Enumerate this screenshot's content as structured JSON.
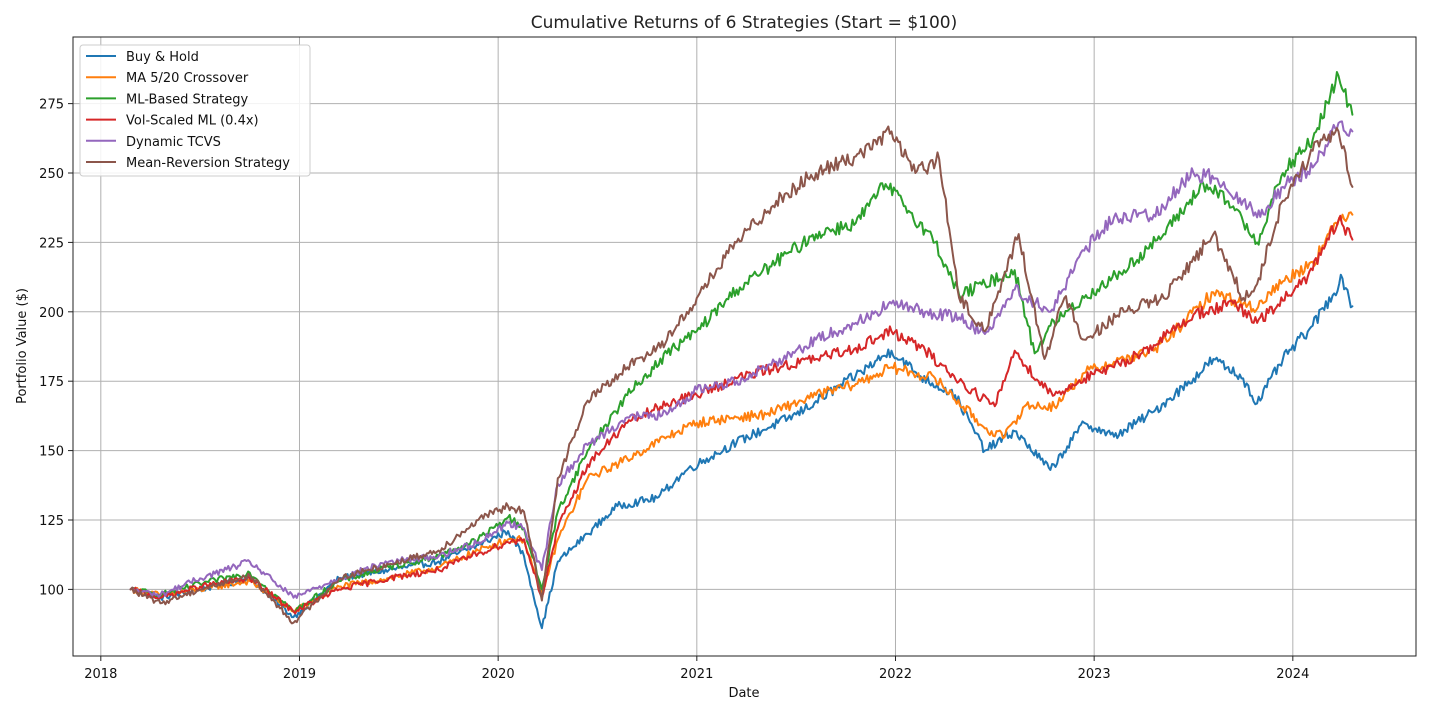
{
  "chart_data": {
    "type": "line",
    "title": "Cumulative Returns of 6 Strategies (Start = $100)",
    "xlabel": "Date",
    "ylabel": "Portfolio Value ($)",
    "xlim": [
      2017.86,
      2024.62
    ],
    "ylim": [
      76,
      299
    ],
    "x_ticks": [
      2018,
      2019,
      2020,
      2021,
      2022,
      2023,
      2024
    ],
    "x_tick_labels": [
      "2018",
      "2019",
      "2020",
      "2021",
      "2022",
      "2023",
      "2024"
    ],
    "y_ticks": [
      100,
      125,
      150,
      175,
      200,
      225,
      250,
      275
    ],
    "y_tick_labels": [
      "100",
      "125",
      "150",
      "175",
      "200",
      "225",
      "250",
      "275"
    ],
    "grid": true,
    "legend_position": "top-left",
    "series": [
      {
        "name": "Buy & Hold",
        "color": "#1f77b4",
        "x": [
          2018.15,
          2018.3,
          2018.5,
          2018.75,
          2018.97,
          2019.2,
          2019.45,
          2019.7,
          2019.9,
          2020.05,
          2020.13,
          2020.22,
          2020.3,
          2020.45,
          2020.6,
          2020.8,
          2020.95,
          2021.2,
          2021.5,
          2021.8,
          2021.98,
          2022.12,
          2022.3,
          2022.45,
          2022.6,
          2022.78,
          2022.95,
          2023.1,
          2023.3,
          2023.5,
          2023.6,
          2023.75,
          2023.82,
          2023.95,
          2024.1,
          2024.25,
          2024.3
        ],
        "y": [
          100,
          97,
          100,
          104,
          90,
          104,
          107,
          110,
          116,
          121,
          112,
          86,
          110,
          120,
          130,
          133,
          143,
          153,
          163,
          177,
          186,
          177,
          170,
          150,
          157,
          143,
          160,
          155,
          164,
          176,
          183,
          176,
          167,
          183,
          195,
          212,
          202
        ]
      },
      {
        "name": "MA 5/20 Crossover",
        "color": "#ff7f0e",
        "x": [
          2018.15,
          2018.3,
          2018.5,
          2018.75,
          2018.97,
          2019.2,
          2019.45,
          2019.7,
          2019.9,
          2020.05,
          2020.13,
          2020.22,
          2020.3,
          2020.45,
          2020.65,
          2020.85,
          2021.0,
          2021.2,
          2021.35,
          2021.6,
          2021.8,
          2021.98,
          2022.2,
          2022.45,
          2022.55,
          2022.65,
          2022.8,
          2022.95,
          2023.1,
          2023.3,
          2023.45,
          2023.6,
          2023.75,
          2023.8,
          2023.95,
          2024.1,
          2024.25,
          2024.3
        ],
        "y": [
          100,
          98,
          100,
          103,
          92,
          101,
          104,
          108,
          114,
          118,
          118,
          98,
          118,
          140,
          147,
          155,
          160,
          162,
          163,
          170,
          174,
          180,
          176,
          158,
          155,
          166,
          166,
          178,
          182,
          186,
          196,
          207,
          203,
          201,
          211,
          218,
          235,
          235
        ]
      },
      {
        "name": "ML-Based Strategy",
        "color": "#2ca02c",
        "x": [
          2018.15,
          2018.3,
          2018.5,
          2018.75,
          2018.97,
          2019.2,
          2019.45,
          2019.7,
          2019.9,
          2020.05,
          2020.13,
          2020.22,
          2020.3,
          2020.45,
          2020.65,
          2020.85,
          2021.0,
          2021.2,
          2021.4,
          2021.6,
          2021.8,
          2021.95,
          2022.05,
          2022.2,
          2022.32,
          2022.45,
          2022.6,
          2022.7,
          2022.78,
          2022.95,
          2023.15,
          2023.35,
          2023.55,
          2023.7,
          2023.82,
          2023.95,
          2024.1,
          2024.23,
          2024.3
        ],
        "y": [
          100,
          98,
          102,
          106,
          92,
          103,
          108,
          112,
          118,
          126,
          122,
          100,
          128,
          150,
          170,
          185,
          193,
          208,
          218,
          228,
          232,
          246,
          238,
          225,
          206,
          210,
          215,
          185,
          195,
          205,
          215,
          228,
          246,
          238,
          225,
          250,
          262,
          285,
          271
        ]
      },
      {
        "name": "Vol-Scaled ML (0.4x)",
        "color": "#d62728",
        "x": [
          2018.15,
          2018.3,
          2018.5,
          2018.75,
          2018.97,
          2019.2,
          2019.45,
          2019.7,
          2019.9,
          2020.05,
          2020.13,
          2020.22,
          2020.3,
          2020.45,
          2020.65,
          2020.85,
          2021.0,
          2021.2,
          2021.4,
          2021.6,
          2021.8,
          2021.98,
          2022.15,
          2022.32,
          2022.5,
          2022.6,
          2022.72,
          2022.8,
          2022.95,
          2023.1,
          2023.3,
          2023.5,
          2023.7,
          2023.82,
          2023.95,
          2024.1,
          2024.23,
          2024.3
        ],
        "y": [
          100,
          97,
          101,
          104,
          92,
          100,
          104,
          107,
          113,
          117,
          118,
          97,
          122,
          145,
          160,
          167,
          170,
          176,
          180,
          183,
          187,
          193,
          186,
          175,
          166,
          186,
          175,
          170,
          176,
          180,
          188,
          199,
          203,
          196,
          204,
          215,
          233,
          226
        ]
      },
      {
        "name": "Dynamic TCVS",
        "color": "#9467bd",
        "x": [
          2018.15,
          2018.3,
          2018.5,
          2018.75,
          2018.97,
          2019.2,
          2019.45,
          2019.7,
          2019.9,
          2020.05,
          2020.13,
          2020.22,
          2020.3,
          2020.45,
          2020.65,
          2020.85,
          2021.0,
          2021.2,
          2021.4,
          2021.6,
          2021.8,
          2021.98,
          2022.15,
          2022.32,
          2022.45,
          2022.6,
          2022.78,
          2022.95,
          2023.1,
          2023.3,
          2023.5,
          2023.62,
          2023.75,
          2023.82,
          2023.95,
          2024.1,
          2024.23,
          2024.3
        ],
        "y": [
          100,
          98,
          104,
          110,
          97,
          104,
          110,
          112,
          117,
          124,
          122,
          107,
          138,
          152,
          162,
          163,
          172,
          175,
          182,
          190,
          196,
          203,
          200,
          198,
          192,
          208,
          200,
          222,
          234,
          235,
          250,
          248,
          240,
          234,
          245,
          252,
          268,
          265
        ]
      },
      {
        "name": "Mean-Reversion Strategy",
        "color": "#8c564b",
        "x": [
          2018.15,
          2018.3,
          2018.5,
          2018.75,
          2018.97,
          2019.2,
          2019.45,
          2019.7,
          2019.9,
          2020.05,
          2020.13,
          2020.22,
          2020.3,
          2020.45,
          2020.65,
          2020.85,
          2021.0,
          2021.2,
          2021.4,
          2021.6,
          2021.8,
          2021.98,
          2022.1,
          2022.22,
          2022.32,
          2022.45,
          2022.62,
          2022.75,
          2022.85,
          2022.95,
          2023.15,
          2023.35,
          2023.6,
          2023.75,
          2023.82,
          2023.95,
          2024.1,
          2024.23,
          2024.3
        ],
        "y": [
          100,
          95,
          100,
          105,
          88,
          104,
          109,
          114,
          125,
          130,
          128,
          96,
          140,
          168,
          180,
          190,
          205,
          225,
          240,
          250,
          256,
          265,
          250,
          255,
          205,
          193,
          228,
          183,
          205,
          190,
          200,
          205,
          228,
          205,
          210,
          240,
          258,
          265,
          245
        ]
      }
    ]
  }
}
